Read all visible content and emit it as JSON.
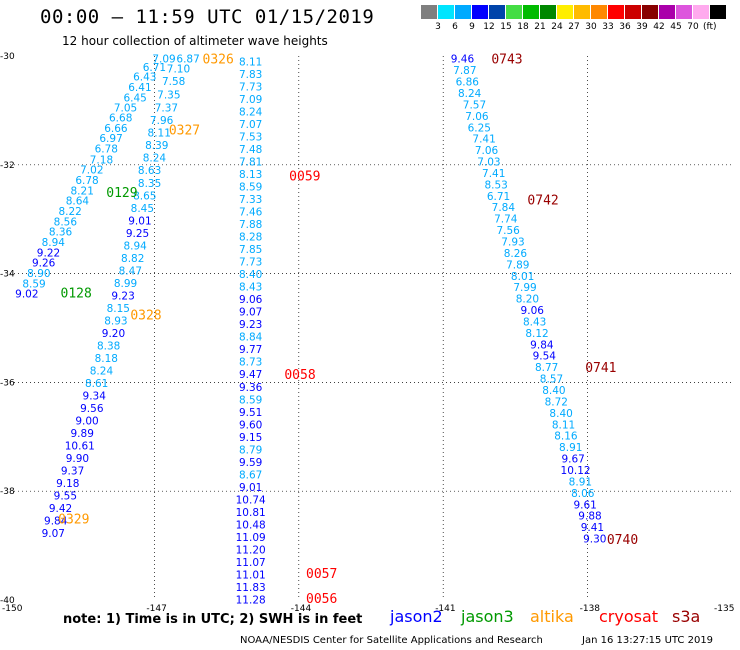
{
  "header": {
    "title": "00:00 – 11:59 UTC 01/15/2019",
    "subtitle": "12 hour collection of altimeter wave heights"
  },
  "color_scale": {
    "colors": [
      "#7f7f7f",
      "#00e5ff",
      "#00aaff",
      "#0000ff",
      "#0044aa",
      "#44dd44",
      "#00bb00",
      "#008800",
      "#ffee00",
      "#ffbb00",
      "#ff8800",
      "#ff0000",
      "#cc0000",
      "#880000",
      "#aa00aa",
      "#dd55dd",
      "#ffaaee",
      "#000000"
    ],
    "labels": [
      "3",
      "6",
      "9",
      "12",
      "15",
      "18",
      "21",
      "24",
      "27",
      "30",
      "33",
      "36",
      "39",
      "42",
      "45",
      "70"
    ],
    "unit": "(ft)"
  },
  "footer": {
    "note": "note: 1) Time is in UTC; 2) SWH is in feet",
    "credit": "NOAA/NESDIS Center for Satellite Applications and Research",
    "stamp": "Jan 16 13:27:15 UTC 2019"
  },
  "satellites": [
    {
      "name": "jason2",
      "color": "#0000ff"
    },
    {
      "name": "jason3",
      "color": "#009900"
    },
    {
      "name": "altika",
      "color": "#ff9900"
    },
    {
      "name": "cryosat",
      "color": "#ff0000"
    },
    {
      "name": "s3a",
      "color": "#990000"
    }
  ],
  "chart_data": {
    "type": "scatter",
    "xlim": [
      -150,
      -135
    ],
    "ylim": [
      -40,
      -30
    ],
    "x_ticks": [
      "-150",
      "-147",
      "-144",
      "-141",
      "-138",
      "-135"
    ],
    "y_ticks": [
      "-30",
      "-32",
      "-34",
      "-36",
      "-38",
      "-40"
    ],
    "grid": true,
    "track_A": [
      {
        "lon": -146.8,
        "lat": -30.05,
        "v": "7.09"
      },
      {
        "lon": -146.3,
        "lat": -30.05,
        "v": "6.87"
      },
      {
        "lon": -147.0,
        "lat": -30.2,
        "v": "6.71"
      },
      {
        "lon": -146.5,
        "lat": -30.23,
        "v": "7.10"
      },
      {
        "lon": -147.2,
        "lat": -30.38,
        "v": "6.43"
      },
      {
        "lon": -146.6,
        "lat": -30.46,
        "v": "7.58"
      },
      {
        "lon": -147.3,
        "lat": -30.57,
        "v": "6.41"
      },
      {
        "lon": -146.7,
        "lat": -30.71,
        "v": "7.35"
      },
      {
        "lon": -147.4,
        "lat": -30.76,
        "v": "6.45"
      },
      {
        "lon": -146.75,
        "lat": -30.95,
        "v": "7.37"
      },
      {
        "lon": -147.6,
        "lat": -30.95,
        "v": "7.05"
      },
      {
        "lon": -147.7,
        "lat": -31.13,
        "v": "6.68"
      },
      {
        "lon": -146.85,
        "lat": -31.18,
        "v": "7.96"
      },
      {
        "lon": -147.8,
        "lat": -31.32,
        "v": "6.66"
      },
      {
        "lon": -146.9,
        "lat": -31.41,
        "v": "8.11"
      },
      {
        "lon": -147.9,
        "lat": -31.51,
        "v": "6.97"
      },
      {
        "lon": -148.0,
        "lat": -31.7,
        "v": "6.78"
      },
      {
        "lon": -146.95,
        "lat": -31.64,
        "v": "8.39"
      },
      {
        "lon": -148.1,
        "lat": -31.9,
        "v": "7.18"
      },
      {
        "lon": -147.0,
        "lat": -31.87,
        "v": "8.24"
      },
      {
        "lon": -148.3,
        "lat": -32.09,
        "v": "7.02"
      },
      {
        "lon": -148.4,
        "lat": -32.28,
        "v": "6.78"
      },
      {
        "lon": -147.1,
        "lat": -32.1,
        "v": "8.63"
      },
      {
        "lon": -148.5,
        "lat": -32.47,
        "v": "8.21"
      },
      {
        "lon": -147.1,
        "lat": -32.33,
        "v": "8.35"
      },
      {
        "lon": -148.6,
        "lat": -32.66,
        "v": "8.64"
      },
      {
        "lon": -147.2,
        "lat": -32.56,
        "v": "8.65"
      },
      {
        "lon": -148.75,
        "lat": -32.85,
        "v": "8.22"
      },
      {
        "lon": -147.25,
        "lat": -32.79,
        "v": "8.45"
      },
      {
        "lon": -148.85,
        "lat": -33.04,
        "v": "8.56"
      },
      {
        "lon": -147.3,
        "lat": -33.02,
        "v": "9.01"
      },
      {
        "lon": -148.95,
        "lat": -33.23,
        "v": "8.36"
      },
      {
        "lon": -147.35,
        "lat": -33.25,
        "v": "9.25"
      },
      {
        "lon": -149.1,
        "lat": -33.42,
        "v": "8.94"
      },
      {
        "lon": -147.4,
        "lat": -33.48,
        "v": "8.94"
      },
      {
        "lon": -149.2,
        "lat": -33.61,
        "v": "9.22"
      },
      {
        "lon": -149.3,
        "lat": -33.8,
        "v": "9.26"
      },
      {
        "lon": -147.45,
        "lat": -33.71,
        "v": "8.82"
      },
      {
        "lon": -149.4,
        "lat": -33.99,
        "v": "8.90"
      },
      {
        "lon": -147.5,
        "lat": -33.94,
        "v": "8.47"
      },
      {
        "lon": -149.5,
        "lat": -34.18,
        "v": "8.59"
      },
      {
        "lon": -147.6,
        "lat": -34.17,
        "v": "8.99"
      },
      {
        "lon": -149.65,
        "lat": -34.37,
        "v": "9.02"
      },
      {
        "lon": -147.65,
        "lat": -34.4,
        "v": "9.23"
      },
      {
        "lon": -147.75,
        "lat": -34.63,
        "v": "8.15"
      },
      {
        "lon": -147.8,
        "lat": -34.86,
        "v": "8.93"
      },
      {
        "lon": -147.85,
        "lat": -35.09,
        "v": "9.20"
      },
      {
        "lon": -147.95,
        "lat": -35.32,
        "v": "8.38"
      },
      {
        "lon": -148.0,
        "lat": -35.55,
        "v": "8.18"
      },
      {
        "lon": -148.1,
        "lat": -35.78,
        "v": "8.24"
      },
      {
        "lon": -148.2,
        "lat": -36.01,
        "v": "8.61"
      },
      {
        "lon": -148.25,
        "lat": -36.24,
        "v": "9.34"
      },
      {
        "lon": -148.3,
        "lat": -36.47,
        "v": "9.56"
      },
      {
        "lon": -148.4,
        "lat": -36.7,
        "v": "9.00"
      },
      {
        "lon": -148.5,
        "lat": -36.93,
        "v": "9.89"
      },
      {
        "lon": -148.55,
        "lat": -37.16,
        "v": "10.61"
      },
      {
        "lon": -148.6,
        "lat": -37.39,
        "v": "9.90"
      },
      {
        "lon": -148.7,
        "lat": -37.62,
        "v": "9.37"
      },
      {
        "lon": -148.8,
        "lat": -37.85,
        "v": "9.18"
      },
      {
        "lon": -148.85,
        "lat": -38.08,
        "v": "9.55"
      },
      {
        "lon": -148.95,
        "lat": -38.31,
        "v": "9.42"
      },
      {
        "lon": -149.05,
        "lat": -38.54,
        "v": "9.84"
      },
      {
        "lon": -149.1,
        "lat": -38.77,
        "v": "9.07"
      }
    ],
    "track_B": [
      {
        "lon": -145.0,
        "lat": -30.1,
        "v": "8.11"
      },
      {
        "lon": -145.0,
        "lat": -30.33,
        "v": "7.83"
      },
      {
        "lon": -145.0,
        "lat": -30.56,
        "v": "7.73"
      },
      {
        "lon": -145.0,
        "lat": -30.79,
        "v": "7.09"
      },
      {
        "lon": -145.0,
        "lat": -31.02,
        "v": "8.24"
      },
      {
        "lon": -145.0,
        "lat": -31.25,
        "v": "7.07"
      },
      {
        "lon": -145.0,
        "lat": -31.48,
        "v": "7.53"
      },
      {
        "lon": -145.0,
        "lat": -31.71,
        "v": "7.48"
      },
      {
        "lon": -145.0,
        "lat": -31.94,
        "v": "7.81"
      },
      {
        "lon": -145.0,
        "lat": -32.17,
        "v": "8.13"
      },
      {
        "lon": -145.0,
        "lat": -32.4,
        "v": "8.59"
      },
      {
        "lon": -145.0,
        "lat": -32.63,
        "v": "7.33"
      },
      {
        "lon": -145.0,
        "lat": -32.86,
        "v": "7.46"
      },
      {
        "lon": -145.0,
        "lat": -33.09,
        "v": "7.88"
      },
      {
        "lon": -145.0,
        "lat": -33.32,
        "v": "8.28"
      },
      {
        "lon": -145.0,
        "lat": -33.55,
        "v": "7.85"
      },
      {
        "lon": -145.0,
        "lat": -33.78,
        "v": "7.73"
      },
      {
        "lon": -145.0,
        "lat": -34.01,
        "v": "8.40"
      },
      {
        "lon": -145.0,
        "lat": -34.24,
        "v": "8.43"
      },
      {
        "lon": -145.0,
        "lat": -34.47,
        "v": "9.06"
      },
      {
        "lon": -145.0,
        "lat": -34.7,
        "v": "9.07"
      },
      {
        "lon": -145.0,
        "lat": -34.93,
        "v": "9.23"
      },
      {
        "lon": -145.0,
        "lat": -35.16,
        "v": "8.84"
      },
      {
        "lon": -145.0,
        "lat": -35.39,
        "v": "9.77"
      },
      {
        "lon": -145.0,
        "lat": -35.62,
        "v": "8.73"
      },
      {
        "lon": -145.0,
        "lat": -35.85,
        "v": "9.47"
      },
      {
        "lon": -145.0,
        "lat": -36.08,
        "v": "9.36"
      },
      {
        "lon": -145.0,
        "lat": -36.31,
        "v": "8.59"
      },
      {
        "lon": -145.0,
        "lat": -36.54,
        "v": "9.51"
      },
      {
        "lon": -145.0,
        "lat": -36.77,
        "v": "9.60"
      },
      {
        "lon": -145.0,
        "lat": -37.0,
        "v": "9.15"
      },
      {
        "lon": -145.0,
        "lat": -37.23,
        "v": "8.79"
      },
      {
        "lon": -145.0,
        "lat": -37.46,
        "v": "9.59"
      },
      {
        "lon": -145.0,
        "lat": -37.69,
        "v": "8.67"
      },
      {
        "lon": -145.0,
        "lat": -37.92,
        "v": "9.01"
      },
      {
        "lon": -145.0,
        "lat": -38.15,
        "v": "10.74"
      },
      {
        "lon": -145.0,
        "lat": -38.38,
        "v": "10.81"
      },
      {
        "lon": -145.0,
        "lat": -38.61,
        "v": "10.48"
      },
      {
        "lon": -145.0,
        "lat": -38.84,
        "v": "11.09"
      },
      {
        "lon": -145.0,
        "lat": -39.07,
        "v": "11.20"
      },
      {
        "lon": -145.0,
        "lat": -39.3,
        "v": "11.07"
      },
      {
        "lon": -145.0,
        "lat": -39.53,
        "v": "11.01"
      },
      {
        "lon": -145.0,
        "lat": -39.76,
        "v": "11.83"
      },
      {
        "lon": -145.0,
        "lat": -39.99,
        "v": "11.28"
      }
    ],
    "track_C": [
      {
        "lon": -140.6,
        "lat": -30.05,
        "v": "9.46"
      },
      {
        "lon": -140.55,
        "lat": -30.26,
        "v": "7.87"
      },
      {
        "lon": -140.5,
        "lat": -30.47,
        "v": "6.86"
      },
      {
        "lon": -140.45,
        "lat": -30.68,
        "v": "8.24"
      },
      {
        "lon": -140.35,
        "lat": -30.89,
        "v": "7.57"
      },
      {
        "lon": -140.3,
        "lat": -31.1,
        "v": "7.06"
      },
      {
        "lon": -140.25,
        "lat": -31.31,
        "v": "6.25"
      },
      {
        "lon": -140.15,
        "lat": -31.52,
        "v": "7.41"
      },
      {
        "lon": -140.1,
        "lat": -31.73,
        "v": "7.06"
      },
      {
        "lon": -140.05,
        "lat": -31.94,
        "v": "7.03"
      },
      {
        "lon": -139.95,
        "lat": -32.15,
        "v": "7.41"
      },
      {
        "lon": -139.9,
        "lat": -32.36,
        "v": "8.53"
      },
      {
        "lon": -139.85,
        "lat": -32.57,
        "v": "6.71"
      },
      {
        "lon": -139.75,
        "lat": -32.78,
        "v": "7.84"
      },
      {
        "lon": -139.7,
        "lat": -32.99,
        "v": "7.74"
      },
      {
        "lon": -139.65,
        "lat": -33.2,
        "v": "7.56"
      },
      {
        "lon": -139.55,
        "lat": -33.41,
        "v": "7.93"
      },
      {
        "lon": -139.5,
        "lat": -33.62,
        "v": "8.26"
      },
      {
        "lon": -139.45,
        "lat": -33.83,
        "v": "7.89"
      },
      {
        "lon": -139.35,
        "lat": -34.04,
        "v": "8.01"
      },
      {
        "lon": -139.3,
        "lat": -34.25,
        "v": "7.99"
      },
      {
        "lon": -139.25,
        "lat": -34.46,
        "v": "8.20"
      },
      {
        "lon": -139.15,
        "lat": -34.67,
        "v": "9.06"
      },
      {
        "lon": -139.1,
        "lat": -34.88,
        "v": "8.43"
      },
      {
        "lon": -139.05,
        "lat": -35.09,
        "v": "8.12"
      },
      {
        "lon": -138.95,
        "lat": -35.3,
        "v": "9.84"
      },
      {
        "lon": -138.9,
        "lat": -35.51,
        "v": "9.54"
      },
      {
        "lon": -138.85,
        "lat": -35.72,
        "v": "8.77"
      },
      {
        "lon": -138.75,
        "lat": -35.93,
        "v": "8.57"
      },
      {
        "lon": -138.7,
        "lat": -36.14,
        "v": "8.40"
      },
      {
        "lon": -138.65,
        "lat": -36.35,
        "v": "8.72"
      },
      {
        "lon": -138.55,
        "lat": -36.56,
        "v": "8.40"
      },
      {
        "lon": -138.5,
        "lat": -36.77,
        "v": "8.11"
      },
      {
        "lon": -138.45,
        "lat": -36.98,
        "v": "8.16"
      },
      {
        "lon": -138.35,
        "lat": -37.19,
        "v": "8.91"
      },
      {
        "lon": -138.3,
        "lat": -37.4,
        "v": "9.67"
      },
      {
        "lon": -138.25,
        "lat": -37.61,
        "v": "10.12"
      },
      {
        "lon": -138.15,
        "lat": -37.82,
        "v": "8.91"
      },
      {
        "lon": -138.1,
        "lat": -38.03,
        "v": "8.06"
      },
      {
        "lon": -138.05,
        "lat": -38.24,
        "v": "9.61"
      },
      {
        "lon": -137.95,
        "lat": -38.45,
        "v": "9.88"
      },
      {
        "lon": -137.9,
        "lat": -38.66,
        "v": "9.41"
      },
      {
        "lon": -137.85,
        "lat": -38.87,
        "v": "9.30"
      }
    ],
    "time_labels": [
      {
        "lon": -146.0,
        "lat": -30.05,
        "t": "0326",
        "sat": "altika"
      },
      {
        "lon": -146.7,
        "lat": -31.35,
        "t": "0327",
        "sat": "altika"
      },
      {
        "lon": -148.0,
        "lat": -32.5,
        "t": "0129",
        "sat": "jason3"
      },
      {
        "lon": -148.95,
        "lat": -34.35,
        "t": "0128",
        "sat": "jason3"
      },
      {
        "lon": -147.5,
        "lat": -34.75,
        "t": "0328",
        "sat": "altika"
      },
      {
        "lon": -149.0,
        "lat": -38.5,
        "t": "0329",
        "sat": "altika"
      },
      {
        "lon": -144.2,
        "lat": -32.2,
        "t": "0059",
        "sat": "cryosat"
      },
      {
        "lon": -144.3,
        "lat": -35.85,
        "t": "0058",
        "sat": "cryosat"
      },
      {
        "lon": -143.85,
        "lat": -39.5,
        "t": "0057",
        "sat": "cryosat"
      },
      {
        "lon": -143.85,
        "lat": -39.96,
        "t": "0056",
        "sat": "cryosat"
      },
      {
        "lon": -140.0,
        "lat": -30.05,
        "t": "0743",
        "sat": "s3a"
      },
      {
        "lon": -139.25,
        "lat": -32.64,
        "t": "0742",
        "sat": "s3a"
      },
      {
        "lon": -138.05,
        "lat": -35.72,
        "t": "0741",
        "sat": "s3a"
      },
      {
        "lon": -137.6,
        "lat": -38.88,
        "t": "0740",
        "sat": "s3a"
      }
    ]
  }
}
